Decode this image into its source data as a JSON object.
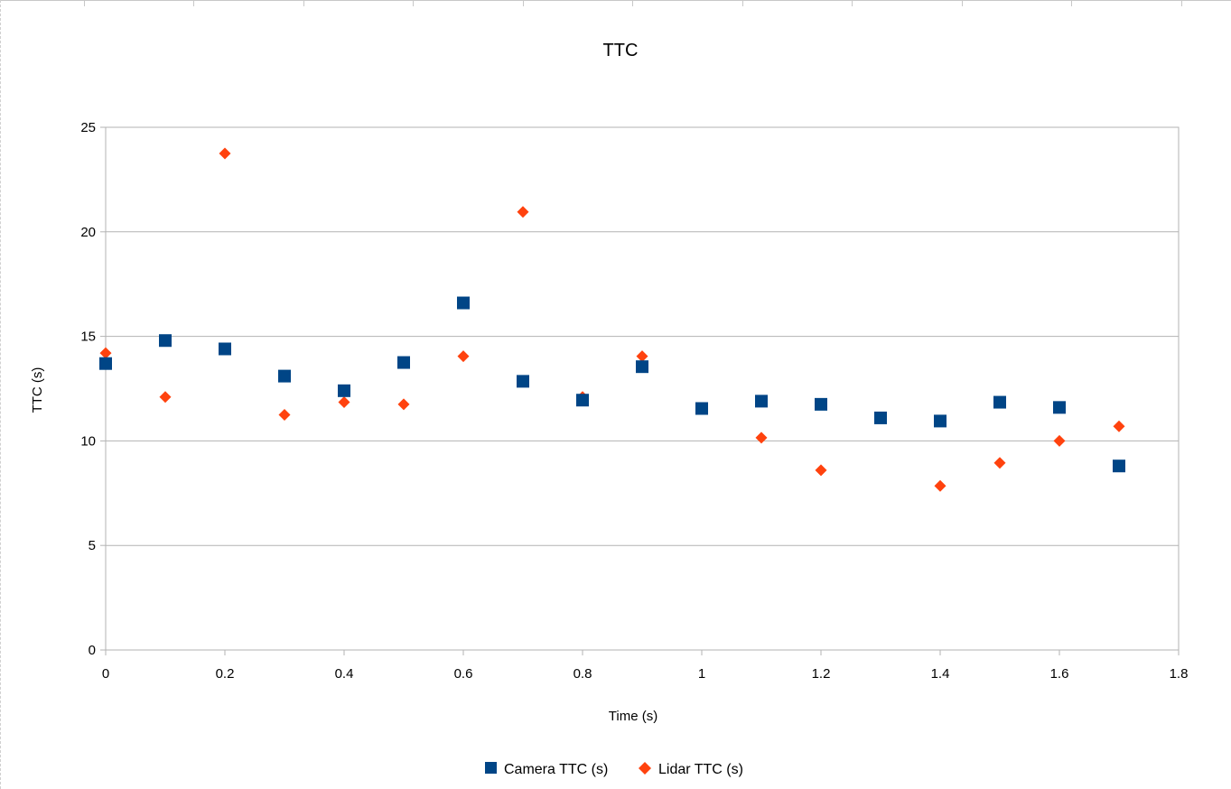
{
  "chart_data": {
    "type": "scatter",
    "title": "TTC",
    "xlabel": "Time (s)",
    "ylabel": "TTC (s)",
    "xlim": [
      0,
      1.8
    ],
    "ylim": [
      0,
      25
    ],
    "x_ticks": [
      0,
      0.2,
      0.4,
      0.6,
      0.8,
      1,
      1.2,
      1.4,
      1.6,
      1.8
    ],
    "y_ticks": [
      0,
      5,
      10,
      15,
      20,
      25
    ],
    "x_tick_labels": [
      "0",
      "0.2",
      "0.4",
      "0.6",
      "0.8",
      "1",
      "1.2",
      "1.4",
      "1.6",
      "1.8"
    ],
    "y_tick_labels": [
      "0",
      "5",
      "10",
      "15",
      "20",
      "25"
    ],
    "grid": "horizontal",
    "legend_position": "bottom",
    "series": [
      {
        "name": "Camera TTC (s)",
        "marker": "square",
        "color": "#004586",
        "x": [
          0,
          0.1,
          0.2,
          0.3,
          0.4,
          0.5,
          0.6,
          0.7,
          0.8,
          0.9,
          1.0,
          1.1,
          1.2,
          1.3,
          1.4,
          1.5,
          1.6,
          1.7
        ],
        "y": [
          13.7,
          14.8,
          14.4,
          13.1,
          12.4,
          13.75,
          16.6,
          12.85,
          11.95,
          13.55,
          11.55,
          11.9,
          11.75,
          11.1,
          10.95,
          11.85,
          11.6,
          8.8
        ]
      },
      {
        "name": "Lidar TTC (s)",
        "marker": "diamond",
        "color": "#ff420e",
        "x": [
          0,
          0.1,
          0.2,
          0.3,
          0.4,
          0.5,
          0.6,
          0.7,
          0.8,
          0.9,
          1.0,
          1.1,
          1.2,
          1.3,
          1.4,
          1.5,
          1.6,
          1.7
        ],
        "y": [
          14.2,
          12.1,
          23.75,
          11.25,
          11.85,
          11.75,
          14.05,
          20.95,
          12.1,
          14.05,
          11.55,
          10.15,
          8.6,
          11.1,
          7.85,
          8.95,
          10.0,
          10.7
        ]
      }
    ]
  }
}
